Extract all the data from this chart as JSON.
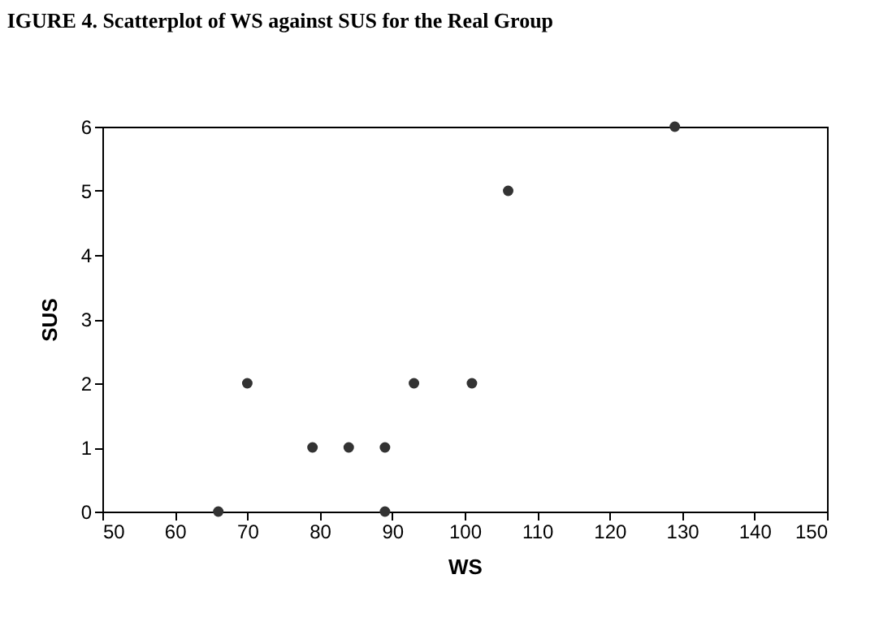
{
  "chart_data": {
    "type": "scatter",
    "title": "IGURE 4. Scatterplot of WS against SUS for the Real Group",
    "xlabel": "WS",
    "ylabel": "SUS",
    "x": [
      66,
      70,
      79,
      84,
      89,
      89,
      93,
      101,
      106,
      129
    ],
    "series": [
      {
        "color": "#333333",
        "values": [
          0,
          2,
          1,
          1,
          1,
          0,
          2,
          2,
          5,
          6
        ]
      }
    ],
    "xlim": [
      50,
      150
    ],
    "xticks": [
      50,
      60,
      70,
      80,
      90,
      100,
      110,
      120,
      130,
      140,
      150
    ],
    "ylim": [
      0,
      6
    ],
    "yticks": [
      0,
      1,
      2,
      3,
      4,
      5,
      6
    ],
    "grid": false
  }
}
